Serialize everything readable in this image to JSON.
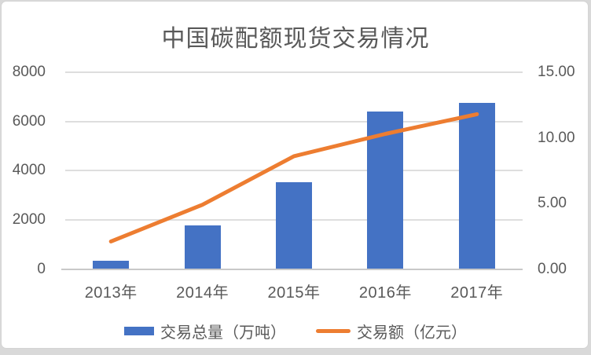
{
  "chart": {
    "title": "中国碳配额现货交易情况",
    "legend": [
      {
        "marker": "bar-swatch",
        "label": "交易总量（万吨）"
      },
      {
        "marker": "line-swatch",
        "label": "交易额（亿元）"
      }
    ],
    "colors": {
      "bar": "#4472C4",
      "line": "#ED7D31",
      "gridline": "#DEDEDE",
      "axis_line": "#C9C9C9",
      "text": "#595959",
      "card_border": "#D4D4D4",
      "page_edge": "#D9D9D9"
    }
  },
  "chart_data": {
    "type": "bar+line",
    "title": "中国碳配额现货交易情况",
    "categories": [
      "2013年",
      "2014年",
      "2015年",
      "2016年",
      "2017年"
    ],
    "series": [
      {
        "name": "交易总量（万吨）",
        "type": "bar",
        "axis": "left",
        "values": [
          320,
          1780,
          3520,
          6390,
          6765
        ]
      },
      {
        "name": "交易额（亿元）",
        "type": "line",
        "axis": "right",
        "values": [
          2.1,
          4.9,
          8.6,
          10.3,
          11.8
        ]
      }
    ],
    "left_axis": {
      "min": 0,
      "max": 8000,
      "step": 2000,
      "ticks": [
        "8000",
        "6000",
        "4000",
        "2000",
        "0"
      ]
    },
    "right_axis": {
      "min": 0,
      "max": 15,
      "step": 5,
      "ticks": [
        "15.00",
        "10.00",
        "5.00",
        "0.00"
      ]
    },
    "grid": true,
    "legend_position": "bottom"
  }
}
